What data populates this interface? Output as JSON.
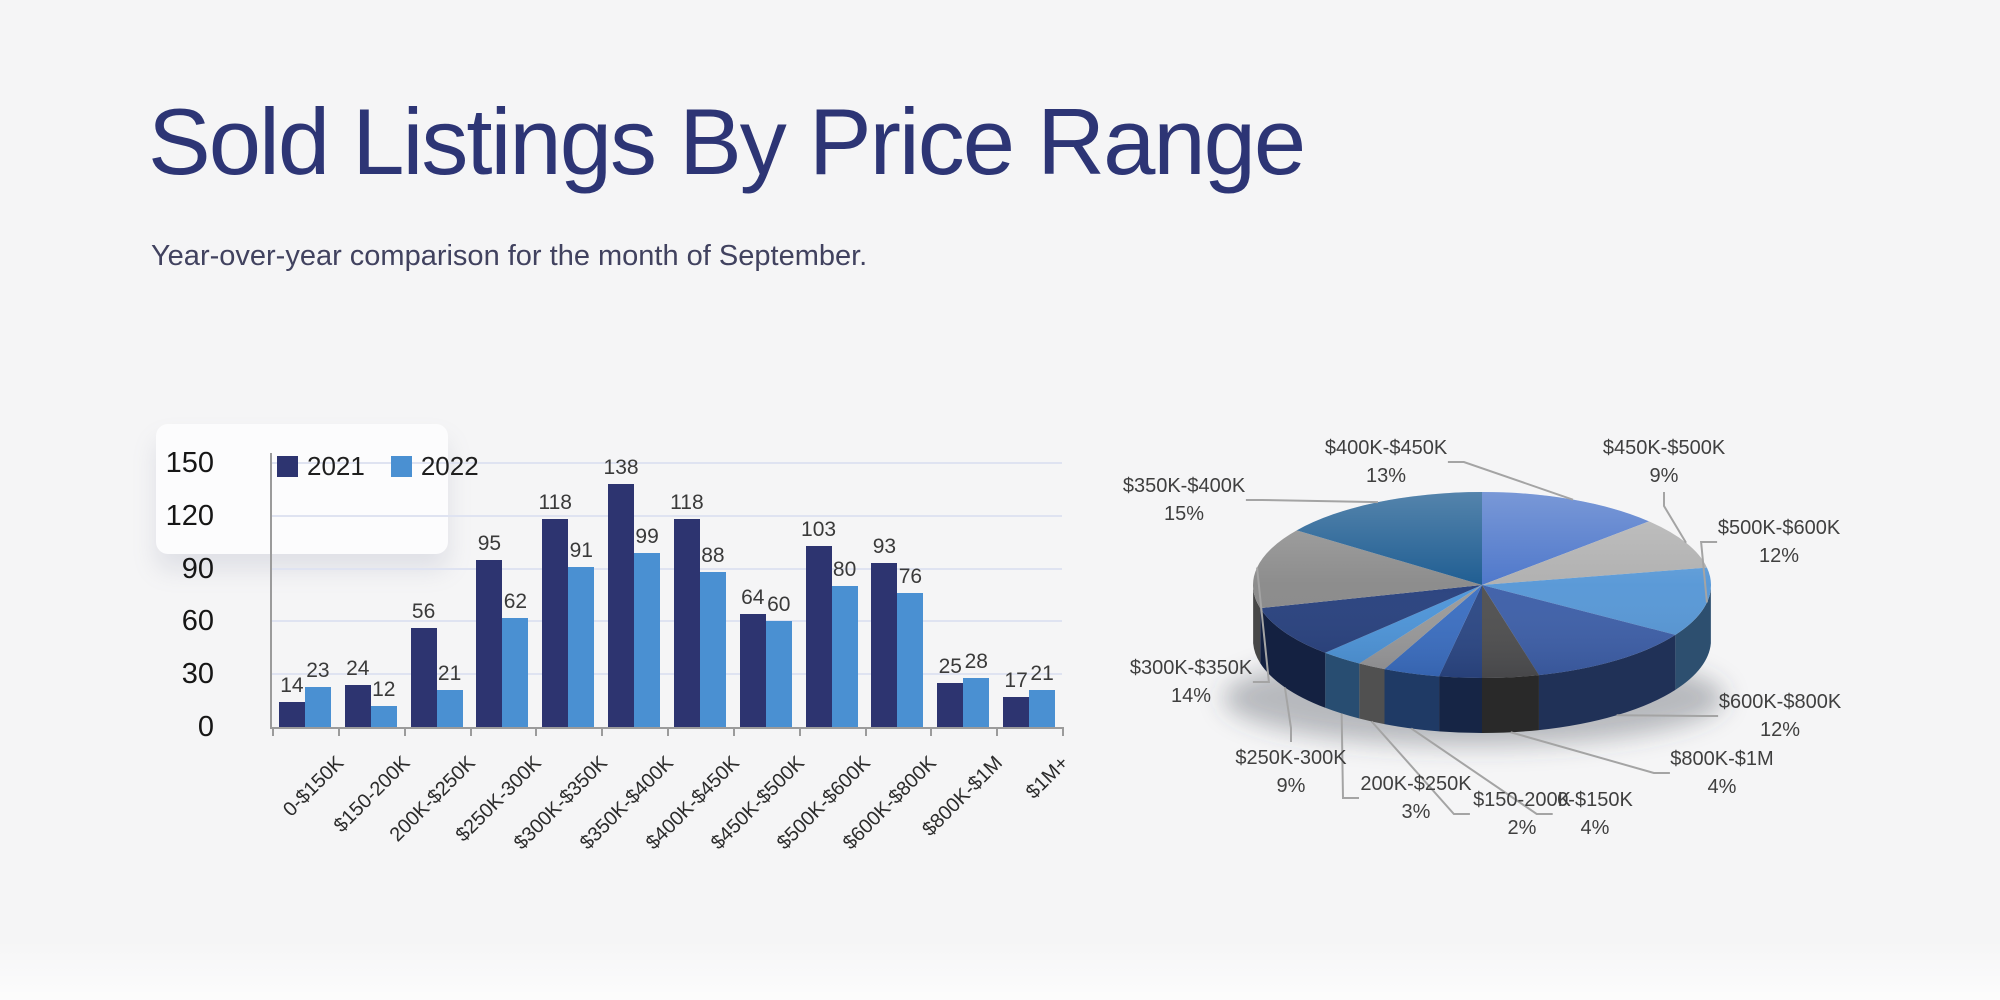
{
  "header": {
    "title": "Sold Listings By Price Range",
    "subtitle": "Year-over-year comparison for the month of September."
  },
  "theme": {
    "background": "#f5f5f6",
    "title_color": "#2d3575",
    "subtitle_color": "#41425f",
    "grid_color": "#dfe3f1",
    "axis_color": "#9b9b9b",
    "leader_color": "#a4a4a4",
    "bar_2021_color": "#2d3470",
    "bar_2022_color": "#4a90d2"
  },
  "chart_data": [
    {
      "type": "bar",
      "title": "",
      "categories": [
        "0-$150K",
        "$150-200K",
        "200K-$250K",
        "$250K-300K",
        "$300K-$350K",
        "$350K-$400K",
        "$400K-$450K",
        "$450K-$500K",
        "$500K-$600K",
        "$600K-$800K",
        "$800K-$1M",
        "$1M+"
      ],
      "series": [
        {
          "name": "2021",
          "color": "#2d3470",
          "values": [
            14,
            24,
            56,
            95,
            118,
            138,
            118,
            64,
            103,
            93,
            25,
            17
          ]
        },
        {
          "name": "2022",
          "color": "#4a90d2",
          "values": [
            23,
            12,
            21,
            62,
            91,
            99,
            88,
            60,
            80,
            76,
            28,
            21
          ]
        }
      ],
      "ylabel": "",
      "xlabel": "",
      "ylim": [
        0,
        150
      ],
      "yticks": [
        0,
        30,
        60,
        90,
        120,
        150
      ],
      "grid": true,
      "legend_position": "top-left",
      "data_labels": true
    },
    {
      "type": "pie",
      "style": "3d",
      "slices": [
        {
          "label": "$400K-$450K",
          "pct": 13,
          "color": "#4a74c9",
          "label_visible": true
        },
        {
          "label": "$450K-$500K",
          "pct": 9,
          "color": "#aeaeae",
          "label_visible": true
        },
        {
          "label": "$500K-$600K",
          "pct": 12,
          "color": "#5697d6",
          "label_visible": true
        },
        {
          "label": "$600K-$800K",
          "pct": 12,
          "color": "#3d5fa8",
          "label_visible": true
        },
        {
          "label": "$800K-$1M",
          "pct": 4,
          "color": "#4f4f4f",
          "label_visible": true
        },
        {
          "label": "$1M+",
          "pct": 3,
          "color": "#2b4784",
          "label_visible": false
        },
        {
          "label": "0-$150K",
          "pct": 4,
          "color": "#3b6fc2",
          "label_visible": true
        },
        {
          "label": "$150-200K",
          "pct": 2,
          "color": "#9a9a9a",
          "label_visible": true
        },
        {
          "label": "200K-$250K",
          "pct": 3,
          "color": "#4d95d9",
          "label_visible": true
        },
        {
          "label": "$250K-300K",
          "pct": 9,
          "color": "#27407d",
          "label_visible": true
        },
        {
          "label": "$300K-$350K",
          "pct": 14,
          "color": "#898989",
          "label_visible": true
        },
        {
          "label": "$350K-$400K",
          "pct": 15,
          "color": "#19598f",
          "label_visible": true
        }
      ]
    }
  ]
}
